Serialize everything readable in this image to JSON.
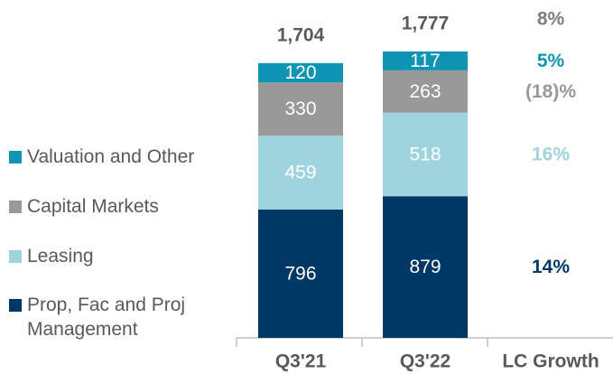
{
  "chart_data": {
    "type": "stacked_bar",
    "categories": [
      "Q3'21",
      "Q3'22"
    ],
    "series": [
      {
        "name": "Prop, Fac and Proj Management",
        "color": "#003865",
        "values": [
          796,
          879
        ],
        "growth": 14,
        "growth_label": "14%",
        "growth_color": "#003865"
      },
      {
        "name": "Leasing",
        "color": "#9fd3de",
        "values": [
          459,
          518
        ],
        "growth": 16,
        "growth_label": "16%",
        "growth_color": "#9fd3de"
      },
      {
        "name": "Capital Markets",
        "color": "#999999",
        "values": [
          330,
          263
        ],
        "growth": -18,
        "growth_label": "(18)%",
        "growth_color": "#999999"
      },
      {
        "name": "Valuation and Other",
        "color": "#0f95b3",
        "values": [
          120,
          117
        ],
        "growth": 5,
        "growth_label": "5%",
        "growth_color": "#0f95b3"
      }
    ],
    "totals": [
      1704,
      1777
    ],
    "total_labels": [
      "1,704",
      "1,777"
    ],
    "growth_header": "LC Growth",
    "total_growth": {
      "value": 8,
      "label": "8%"
    }
  }
}
